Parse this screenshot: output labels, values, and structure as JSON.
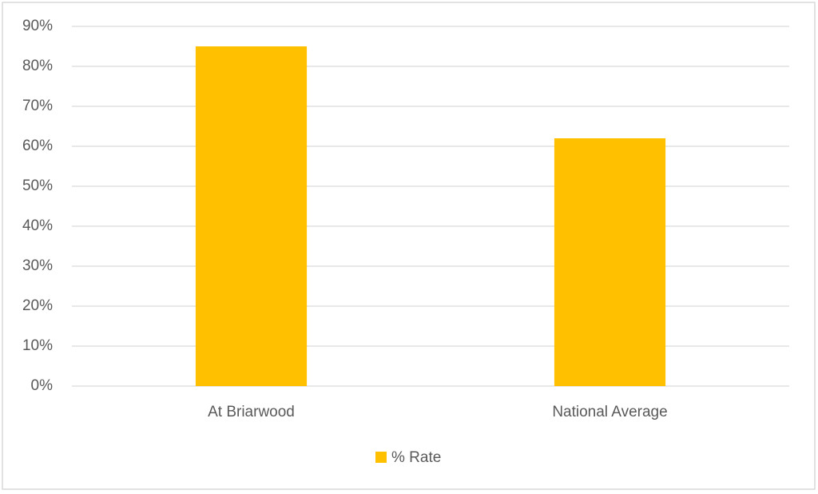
{
  "chart_data": {
    "type": "bar",
    "categories": [
      "At Briarwood",
      "National Average"
    ],
    "series": [
      {
        "name": "% Rate",
        "color": "#ffc000",
        "values": [
          85,
          62
        ]
      }
    ],
    "ylim": [
      0,
      90
    ],
    "yticks": [
      {
        "value": 0,
        "label": "0%"
      },
      {
        "value": 10,
        "label": "10%"
      },
      {
        "value": 20,
        "label": "20%"
      },
      {
        "value": 30,
        "label": "30%"
      },
      {
        "value": 40,
        "label": "40%"
      },
      {
        "value": 50,
        "label": "50%"
      },
      {
        "value": 60,
        "label": "60%"
      },
      {
        "value": 70,
        "label": "70%"
      },
      {
        "value": 80,
        "label": "80%"
      },
      {
        "value": 90,
        "label": "90%"
      }
    ],
    "grid": true,
    "legend": "bottom"
  }
}
